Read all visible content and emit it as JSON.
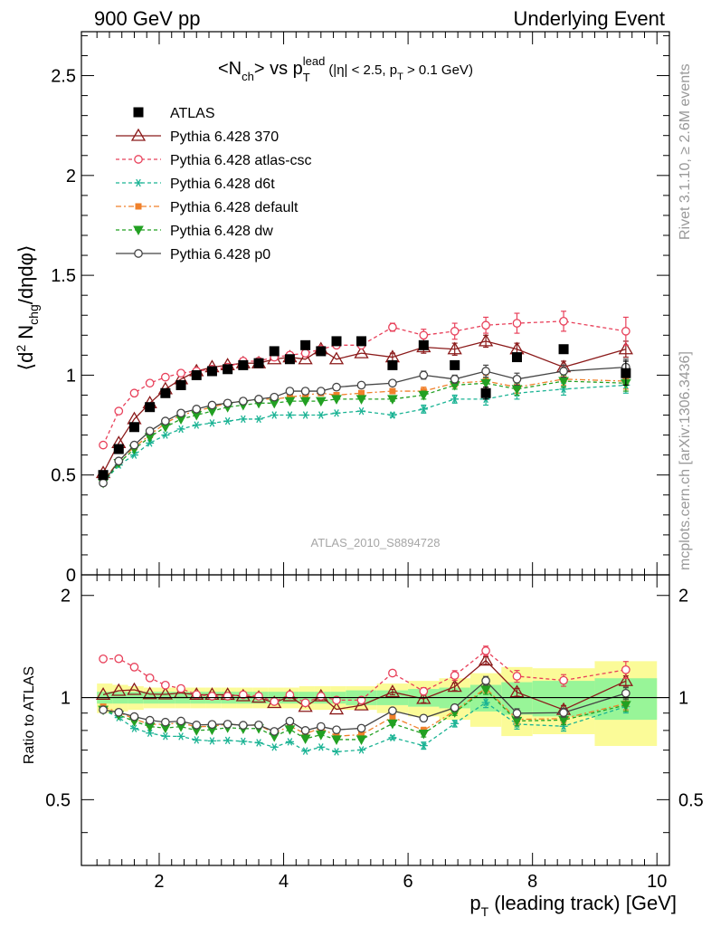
{
  "header": {
    "left": "900 GeV pp",
    "right": "Underlying Event"
  },
  "side_labels": {
    "top": "Rivet 3.1.10, ≥ 2.6M events",
    "bottom": "mcplots.cern.ch [arXiv:1306.3436]"
  },
  "watermark": "ATLAS_2010_S8894728",
  "chart_data": [
    {
      "type": "line",
      "title": "<N_ch> vs p_T^lead (|η| < 2.5, p_T > 0.1 GeV)",
      "title_parts": {
        "lead": "<N",
        "sub1": "ch",
        "mid": "> vs p",
        "sub2": "T",
        "sup": "lead",
        "tail": "(|η| < 2.5, p",
        "sub3": "T",
        "end": " > 0.1 GeV)"
      },
      "ylabel": "⟨d² N_chg/dηdφ⟩",
      "ylabel_parts": {
        "a": "⟨d",
        "sup": "2",
        "b": " N",
        "sub": "chg",
        "c": "/dηdφ⟩"
      },
      "xlim": [
        0.75,
        10.2
      ],
      "ylim": [
        0,
        2.72
      ],
      "yticks": [
        0,
        0.5,
        1,
        1.5,
        2,
        2.5
      ],
      "yticklabels": [
        "0",
        "0.5",
        "1",
        "1.5",
        "2",
        "2.5"
      ],
      "legend_position": "top-left",
      "x": [
        1.1,
        1.35,
        1.6,
        1.85,
        2.1,
        2.35,
        2.6,
        2.85,
        3.1,
        3.35,
        3.6,
        3.85,
        4.1,
        4.35,
        4.6,
        4.85,
        5.25,
        5.75,
        6.25,
        6.75,
        7.25,
        7.75,
        8.5,
        9.5
      ],
      "series": [
        {
          "name": "ATLAS",
          "color": "#000000",
          "marker": "square",
          "values": [
            0.5,
            0.63,
            0.74,
            0.84,
            0.91,
            0.95,
            1.0,
            1.02,
            1.03,
            1.05,
            1.06,
            1.12,
            1.08,
            1.15,
            1.12,
            1.17,
            1.17,
            1.05,
            1.15,
            1.05,
            0.91,
            1.09,
            1.13,
            1.01
          ],
          "errors": [
            0,
            0,
            0,
            0,
            0,
            0,
            0,
            0,
            0,
            0,
            0,
            0,
            0,
            0,
            0,
            0,
            0,
            0,
            0,
            0,
            0.03,
            0,
            0,
            0.06
          ]
        },
        {
          "name": "Pythia 6.428 370",
          "color": "#8b1a1a",
          "marker": "triangle-open",
          "dash": "",
          "values": [
            0.51,
            0.66,
            0.78,
            0.86,
            0.93,
            0.98,
            1.02,
            1.04,
            1.05,
            1.06,
            1.06,
            1.08,
            1.09,
            1.08,
            1.13,
            1.08,
            1.11,
            1.09,
            1.14,
            1.13,
            1.17,
            1.13,
            1.04,
            1.13
          ],
          "errors": [
            0,
            0,
            0,
            0,
            0,
            0,
            0,
            0,
            0,
            0,
            0,
            0,
            0,
            0,
            0,
            0,
            0,
            0.02,
            0.03,
            0.03,
            0.03,
            0.03,
            0.03,
            0.04
          ]
        },
        {
          "name": "Pythia 6.428 atlas-csc",
          "color": "#e8405a",
          "marker": "circle-open",
          "dash": "4,3",
          "values": [
            0.65,
            0.82,
            0.91,
            0.96,
            0.99,
            1.01,
            1.02,
            1.03,
            1.04,
            1.07,
            1.07,
            1.09,
            1.1,
            1.11,
            1.13,
            1.15,
            1.15,
            1.24,
            1.2,
            1.22,
            1.25,
            1.26,
            1.27,
            1.22
          ],
          "errors": [
            0,
            0,
            0,
            0,
            0,
            0,
            0,
            0,
            0,
            0,
            0,
            0,
            0,
            0,
            0,
            0,
            0,
            0.02,
            0.03,
            0.04,
            0.04,
            0.05,
            0.05,
            0.07
          ]
        },
        {
          "name": "Pythia 6.428 d6t",
          "color": "#1ab394",
          "marker": "asterisk",
          "dash": "4,3",
          "values": [
            0.46,
            0.55,
            0.6,
            0.66,
            0.7,
            0.73,
            0.75,
            0.76,
            0.77,
            0.78,
            0.78,
            0.8,
            0.8,
            0.8,
            0.8,
            0.81,
            0.82,
            0.8,
            0.83,
            0.88,
            0.88,
            0.91,
            0.93,
            0.95
          ],
          "errors": [
            0,
            0,
            0,
            0,
            0,
            0,
            0,
            0,
            0,
            0,
            0,
            0,
            0,
            0,
            0,
            0,
            0,
            0.01,
            0.02,
            0.02,
            0.03,
            0.03,
            0.03,
            0.04
          ]
        },
        {
          "name": "Pythia 6.428 default",
          "color": "#f0802a",
          "marker": "square-small",
          "dash": "6,3,2,3",
          "values": [
            0.47,
            0.57,
            0.64,
            0.7,
            0.76,
            0.8,
            0.82,
            0.84,
            0.86,
            0.87,
            0.88,
            0.88,
            0.89,
            0.9,
            0.91,
            0.9,
            0.91,
            0.92,
            0.92,
            0.96,
            0.97,
            0.94,
            0.98,
            0.97
          ],
          "errors": [
            0,
            0,
            0,
            0,
            0,
            0,
            0,
            0,
            0,
            0,
            0,
            0,
            0,
            0,
            0,
            0,
            0,
            0.01,
            0.02,
            0.02,
            0.03,
            0.03,
            0.03,
            0.04
          ]
        },
        {
          "name": "Pythia 6.428 dw",
          "color": "#22a022",
          "marker": "triangle-down",
          "dash": "4,3",
          "values": [
            0.46,
            0.56,
            0.63,
            0.69,
            0.74,
            0.78,
            0.8,
            0.82,
            0.84,
            0.85,
            0.86,
            0.86,
            0.87,
            0.87,
            0.87,
            0.88,
            0.88,
            0.88,
            0.9,
            0.95,
            0.96,
            0.93,
            0.97,
            0.96
          ],
          "errors": [
            0,
            0,
            0,
            0,
            0,
            0,
            0,
            0,
            0,
            0,
            0,
            0,
            0,
            0,
            0,
            0,
            0,
            0.01,
            0.02,
            0.02,
            0.03,
            0.03,
            0.03,
            0.04
          ]
        },
        {
          "name": "Pythia 6.428 p0",
          "color": "#444444",
          "marker": "circle-open",
          "dash": "",
          "values": [
            0.46,
            0.57,
            0.65,
            0.72,
            0.77,
            0.81,
            0.83,
            0.85,
            0.86,
            0.87,
            0.88,
            0.89,
            0.92,
            0.92,
            0.92,
            0.94,
            0.95,
            0.96,
            1.0,
            0.98,
            1.02,
            0.98,
            1.02,
            1.04
          ],
          "errors": [
            0,
            0,
            0,
            0,
            0,
            0,
            0,
            0,
            0,
            0,
            0,
            0,
            0,
            0,
            0,
            0,
            0,
            0.01,
            0.02,
            0.02,
            0.03,
            0.03,
            0.03,
            0.04
          ]
        }
      ]
    },
    {
      "type": "line",
      "ylabel": "Ratio to ATLAS",
      "xlabel": "p_T (leading track) [GeV]",
      "xlabel_parts": {
        "a": "p",
        "sub": "T",
        "b": " (leading track) [GeV]"
      },
      "xlim": [
        0.75,
        10.2
      ],
      "ylim": [
        0.32,
        2.3
      ],
      "xticks": [
        2,
        4,
        6,
        8,
        10
      ],
      "xticklabels": [
        "2",
        "4",
        "6",
        "8",
        "10"
      ],
      "yticks": [
        0.5,
        1,
        2
      ],
      "yticklabels": [
        "0.5",
        "1",
        "2"
      ],
      "reference_line": 1,
      "bands": {
        "x_edges": [
          1.0,
          1.25,
          1.5,
          1.75,
          2.0,
          2.25,
          2.5,
          2.75,
          3.0,
          3.25,
          3.5,
          3.75,
          4.0,
          4.25,
          4.5,
          4.75,
          5.0,
          5.5,
          6.0,
          6.5,
          7.0,
          7.5,
          8.0,
          9.0,
          10.0
        ],
        "green_halfwidth": [
          0.04,
          0.04,
          0.04,
          0.04,
          0.04,
          0.04,
          0.04,
          0.04,
          0.04,
          0.04,
          0.04,
          0.04,
          0.04,
          0.04,
          0.04,
          0.04,
          0.05,
          0.05,
          0.06,
          0.07,
          0.09,
          0.11,
          0.12,
          0.14
        ],
        "yellow_halfwidth": [
          0.1,
          0.09,
          0.08,
          0.07,
          0.07,
          0.07,
          0.07,
          0.07,
          0.07,
          0.07,
          0.07,
          0.07,
          0.07,
          0.08,
          0.08,
          0.08,
          0.08,
          0.1,
          0.12,
          0.14,
          0.18,
          0.23,
          0.22,
          0.28
        ],
        "green_color": "#98f598",
        "yellow_color": "#fbfb98"
      }
    }
  ]
}
